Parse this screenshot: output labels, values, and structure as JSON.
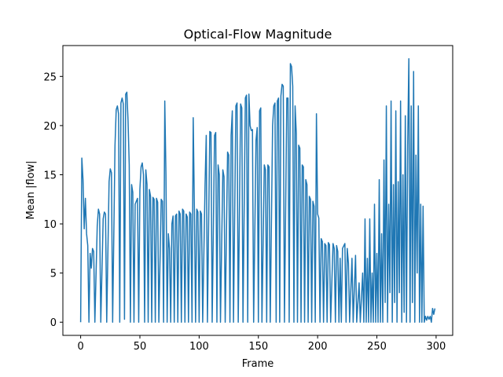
{
  "chart_data": {
    "type": "line",
    "title": "Optical-Flow Magnitude",
    "x_label": "Frame",
    "y_label": "Mean |flow|",
    "x": [
      0,
      1,
      2,
      3,
      4,
      5,
      6,
      7,
      8,
      9,
      10,
      11,
      12,
      14,
      15,
      16,
      17,
      19,
      20,
      21,
      22,
      24,
      25,
      26,
      27,
      29,
      30,
      31,
      32,
      33,
      34,
      35,
      36,
      37,
      38,
      39,
      40,
      41,
      42,
      43,
      44,
      45,
      46,
      47,
      48,
      49,
      50,
      51,
      52,
      53,
      54,
      55,
      56,
      57,
      58,
      59,
      60,
      61,
      62,
      63,
      64,
      65,
      66,
      68,
      69,
      70,
      71,
      72,
      73,
      74,
      75,
      76,
      77,
      78,
      79,
      80,
      81,
      82,
      83,
      84,
      85,
      86,
      87,
      88,
      89,
      90,
      91,
      92,
      93,
      94,
      95,
      96,
      97,
      98,
      99,
      100,
      101,
      102,
      103,
      105,
      106,
      107,
      109,
      110,
      111,
      113,
      114,
      115,
      116,
      117,
      118,
      120,
      121,
      122,
      124,
      125,
      126,
      127,
      128,
      129,
      131,
      132,
      133,
      135,
      136,
      137,
      139,
      140,
      141,
      142,
      143,
      144,
      145,
      146,
      148,
      149,
      150,
      151,
      152,
      153,
      155,
      156,
      157,
      158,
      159,
      160,
      162,
      163,
      164,
      165,
      166,
      167,
      168,
      169,
      170,
      171,
      172,
      174,
      175,
      176,
      177,
      178,
      179,
      180,
      181,
      182,
      183,
      184,
      185,
      186,
      187,
      188,
      189,
      190,
      191,
      192,
      193,
      194,
      195,
      196,
      197,
      198,
      199,
      200,
      201,
      202,
      203,
      204,
      205,
      206,
      207,
      208,
      209,
      210,
      211,
      213,
      214,
      215,
      216,
      217,
      218,
      219,
      220,
      221,
      223,
      224,
      225,
      226,
      227,
      229,
      230,
      232,
      233,
      235,
      236,
      238,
      239,
      240,
      241,
      242,
      243,
      244,
      245,
      246,
      247,
      248,
      249,
      250,
      251,
      252,
      253,
      254,
      255,
      256,
      257,
      258,
      259,
      260,
      261,
      262,
      263,
      264,
      265,
      266,
      267,
      268,
      269,
      270,
      271,
      272,
      273,
      274,
      275,
      276,
      277,
      278,
      279,
      280,
      281,
      282,
      283,
      284,
      285,
      286,
      287,
      288,
      289,
      290,
      291,
      292,
      293,
      294,
      295,
      296,
      297,
      298,
      299
    ],
    "series": [
      {
        "name": "Mean |flow|",
        "color": "#1f77b4",
        "values": [
          0,
          16.7,
          14.5,
          9.5,
          12.6,
          9,
          7.8,
          0,
          7,
          5.5,
          7.5,
          7.2,
          0,
          9.8,
          11.5,
          11,
          0,
          10.5,
          11.2,
          11,
          0,
          14.3,
          15.6,
          15.2,
          0,
          18,
          21.6,
          22,
          21.2,
          0,
          22.3,
          22.8,
          22.2,
          0.3,
          23.2,
          23.4,
          20.5,
          16,
          0,
          14,
          13.2,
          0,
          12,
          12.3,
          12.6,
          0,
          13.5,
          15.8,
          16.2,
          15,
          0,
          15.5,
          14,
          0,
          13.5,
          12.8,
          0,
          12.7,
          12.5,
          0,
          12.6,
          12.2,
          0,
          12.5,
          12.3,
          0,
          22.5,
          15,
          0,
          9,
          7.5,
          0,
          10,
          10.8,
          0,
          10.8,
          11,
          0,
          11.3,
          11,
          0,
          11.5,
          11.3,
          0,
          11,
          10.7,
          0,
          11.2,
          11,
          0,
          20.8,
          11.5,
          0,
          11.5,
          11.2,
          0,
          11.3,
          11,
          0,
          14,
          19,
          0,
          19.4,
          19.3,
          0,
          19,
          19.3,
          0,
          16,
          15,
          0,
          15.5,
          14.8,
          0,
          17.3,
          17,
          0,
          19,
          21.5,
          0,
          22,
          22.3,
          0,
          22.2,
          21.8,
          0,
          22.8,
          23.1,
          0,
          23.2,
          20,
          19.5,
          19.6,
          0,
          18.5,
          19.8,
          0,
          21.5,
          21.8,
          0,
          16,
          15.5,
          0,
          16,
          15.8,
          0,
          20,
          22,
          22.3,
          0,
          22.5,
          22.8,
          0,
          23,
          24.2,
          24,
          0,
          22.8,
          22.8,
          0,
          26.3,
          26,
          24,
          0,
          22,
          19.2,
          0,
          18,
          17.7,
          0,
          16,
          15.8,
          0,
          14.5,
          14,
          0,
          12.8,
          12.5,
          0,
          12.3,
          11.8,
          0,
          21.2,
          11,
          10.6,
          0,
          8.5,
          8.2,
          0,
          8,
          7.8,
          0,
          8.1,
          7.9,
          0,
          8,
          7.5,
          0,
          7.8,
          7.2,
          0,
          6.5,
          0,
          7.5,
          8,
          0,
          7.5,
          6,
          0,
          6.5,
          0,
          6.8,
          0,
          4,
          0,
          5,
          0,
          10.5,
          0,
          6.5,
          0,
          10.5,
          0,
          5,
          0,
          12,
          0,
          7,
          0,
          14.5,
          0,
          9,
          0,
          16.5,
          2,
          22,
          0,
          12,
          3,
          22.5,
          0,
          14,
          2,
          21.5,
          0,
          14.3,
          3,
          22.5,
          0,
          15,
          1,
          21,
          0,
          18,
          26.8,
          0,
          22,
          2,
          25.5,
          0,
          17,
          5,
          22,
          0,
          12,
          0,
          11.8,
          0,
          0.6,
          0.2,
          0.6,
          0.3,
          0.6,
          0,
          1.4,
          0.8,
          1.4
        ]
      }
    ],
    "xlim": [
      -15,
      314
    ],
    "ylim": [
      -1.34,
      28.14
    ],
    "xticks": [
      0,
      50,
      100,
      150,
      200,
      250,
      300
    ],
    "yticks": [
      0,
      5,
      10,
      15,
      20,
      25
    ]
  }
}
